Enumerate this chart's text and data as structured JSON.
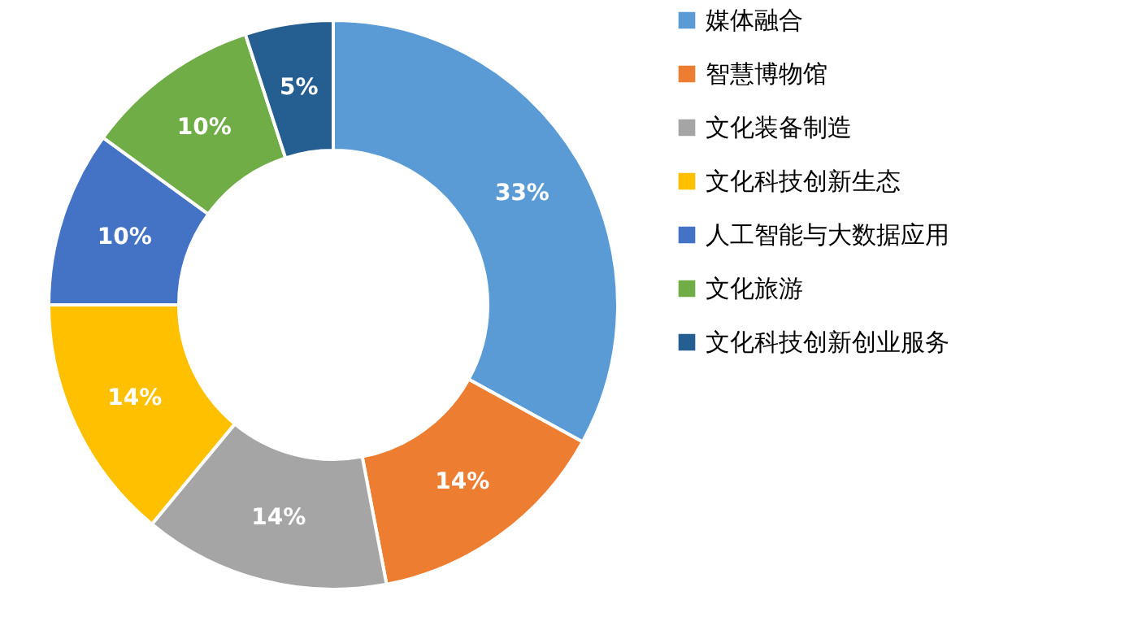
{
  "chart_data": {
    "type": "donut",
    "categories": [
      "媒体融合",
      "智慧博物馆",
      "文化装备制造",
      "文化科技创新生态",
      "人工智能与大数据应用",
      "文化旅游",
      "文化科技创新创业服务"
    ],
    "values": [
      33,
      14,
      14,
      14,
      10,
      10,
      5
    ],
    "colors": [
      "#5b9bd5",
      "#ed7d31",
      "#a5a5a5",
      "#ffc000",
      "#4472c4",
      "#70ad47",
      "#255e91"
    ],
    "value_labels": [
      "33%",
      "14%",
      "14%",
      "14%",
      "10%",
      "10%",
      "5%"
    ],
    "legend": "right"
  }
}
